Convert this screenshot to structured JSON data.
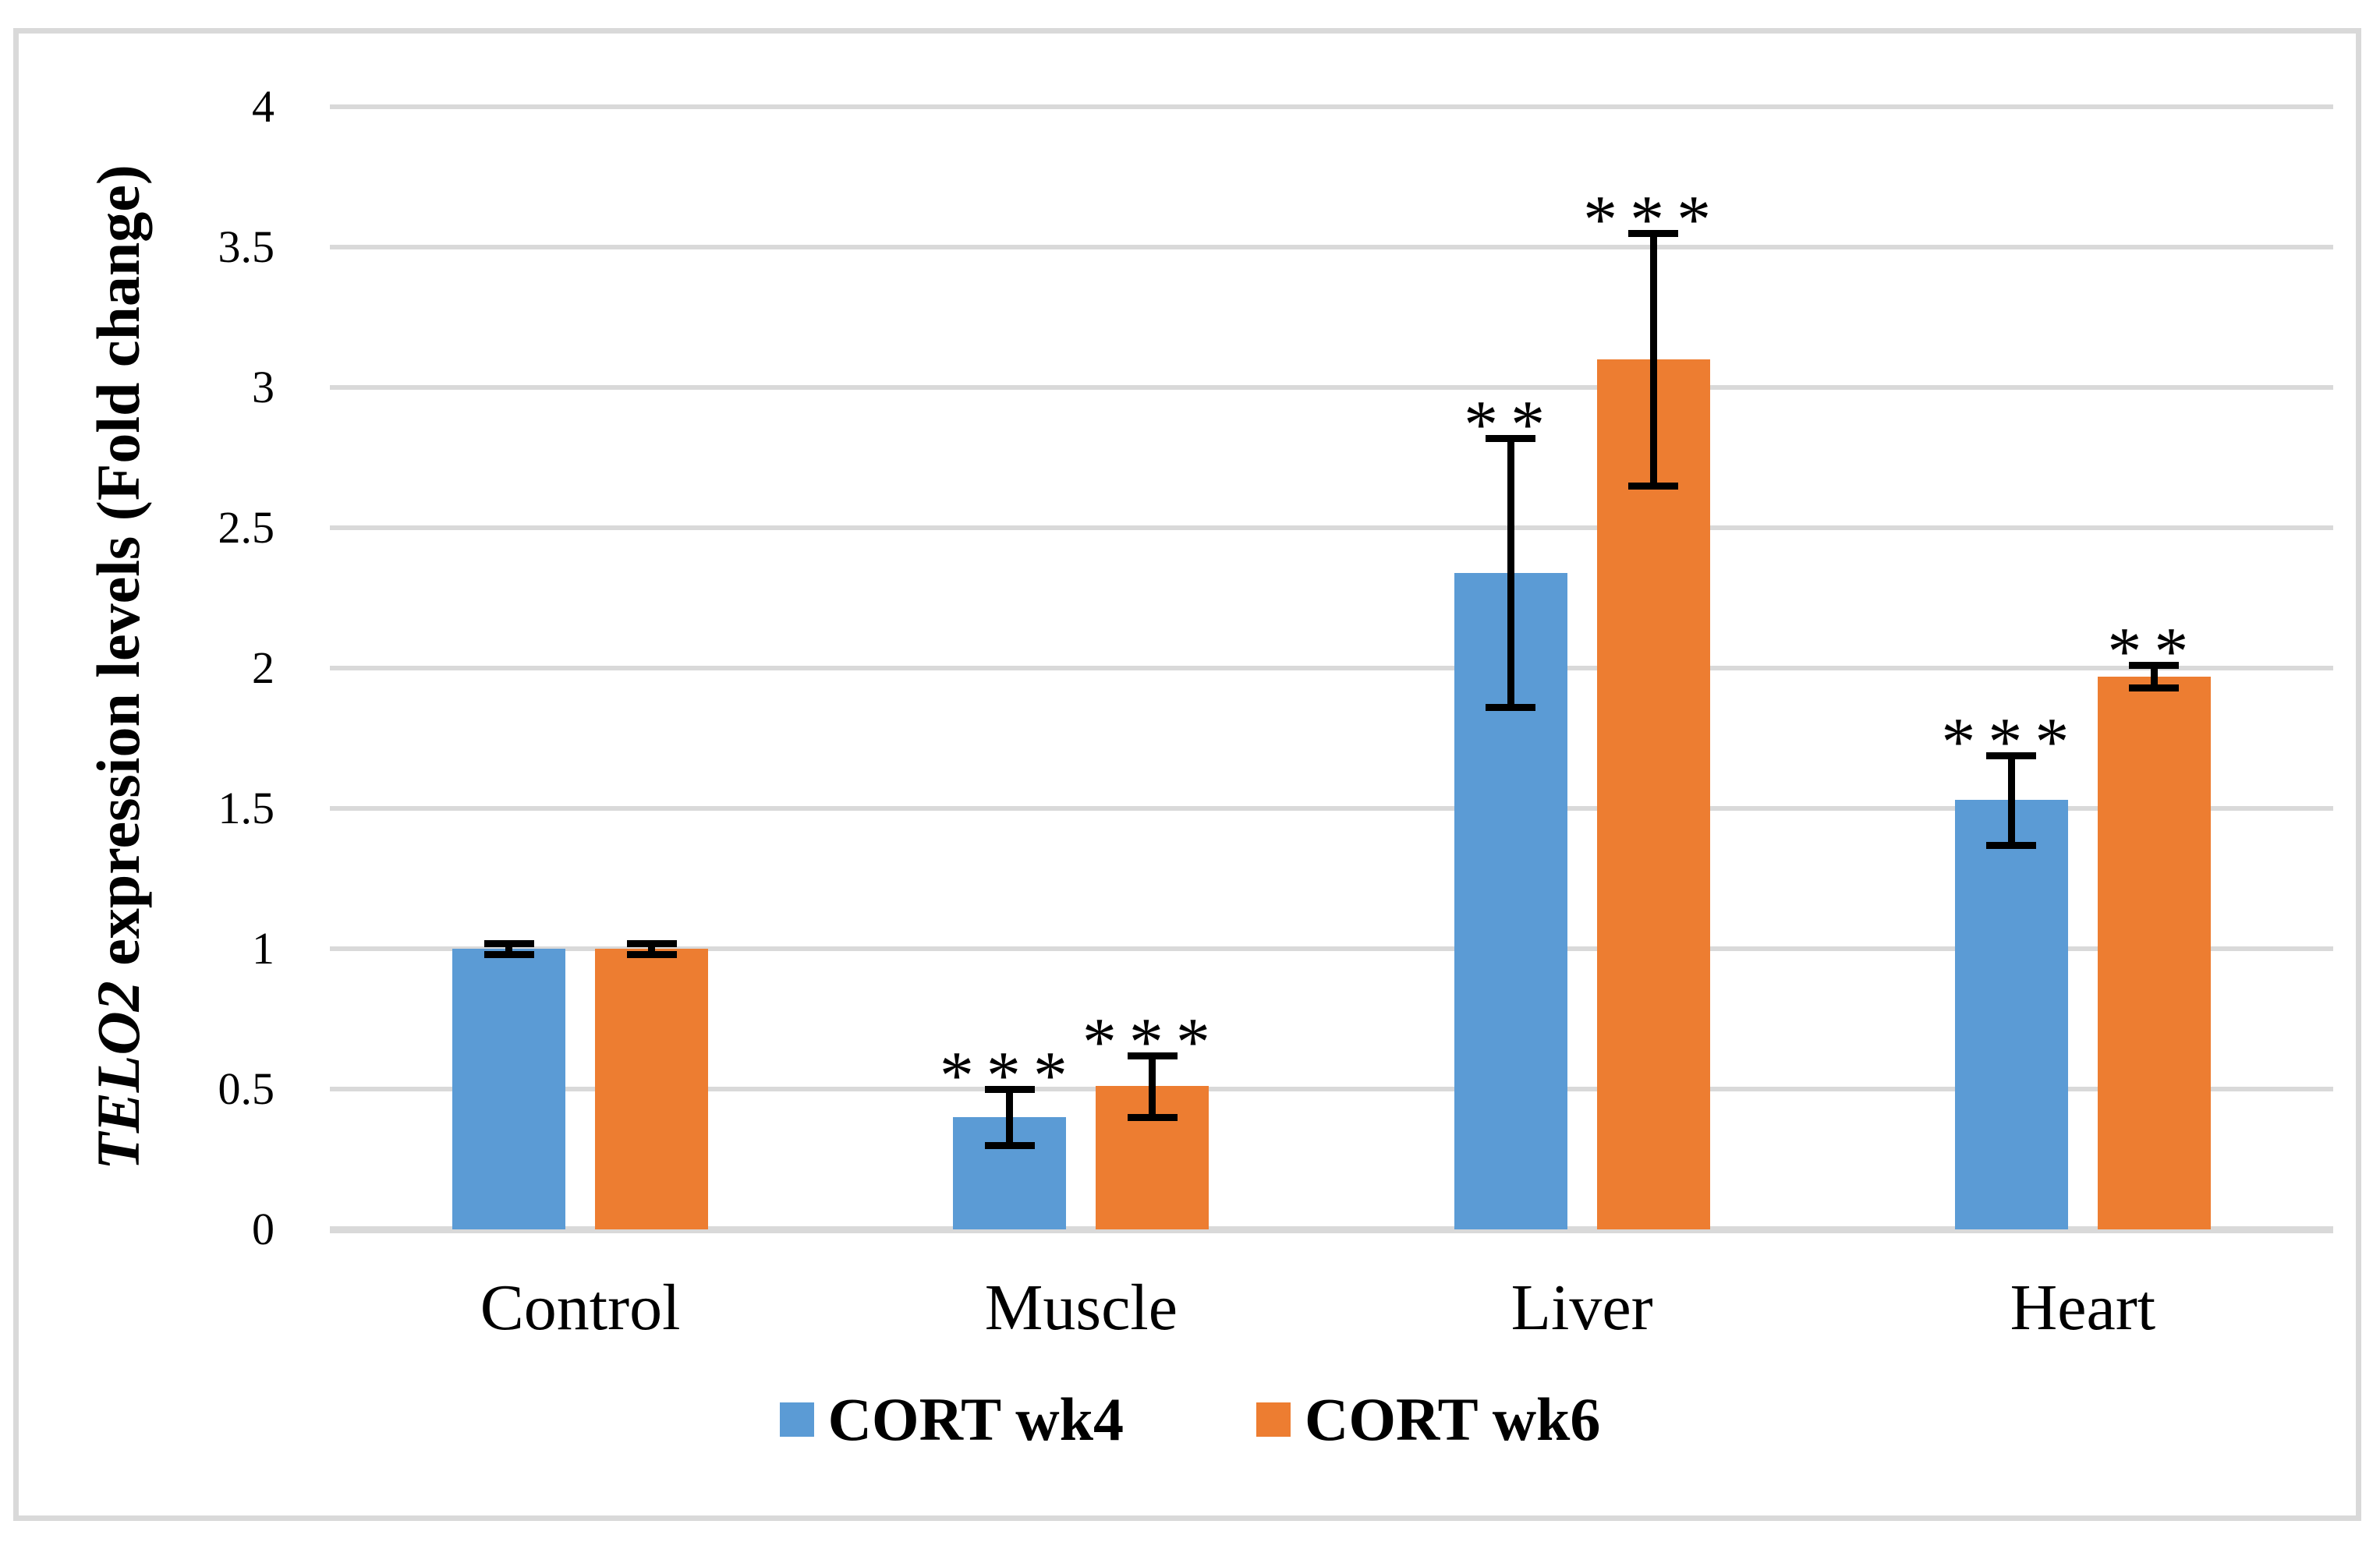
{
  "chart_data": {
    "type": "bar",
    "title": "",
    "ylabel_italic": "TELO2",
    "ylabel_rest": " expression levels (Fold change)",
    "categories": [
      "Control",
      "Muscle",
      "Liver",
      "Heart"
    ],
    "series": [
      {
        "name": "CORT wk4",
        "color": "#5b9bd5",
        "values": [
          1.0,
          0.4,
          2.34,
          1.53
        ],
        "errors": [
          0.02,
          0.1,
          0.48,
          0.16
        ],
        "significance": [
          "",
          "***",
          "**",
          "***"
        ]
      },
      {
        "name": "CORT wk6",
        "color": "#ed7d31",
        "values": [
          1.0,
          0.51,
          3.1,
          1.97
        ],
        "errors": [
          0.02,
          0.11,
          0.45,
          0.04
        ],
        "significance": [
          "",
          "***",
          "***",
          "**"
        ]
      }
    ],
    "ylim": [
      0,
      4
    ],
    "ytick_step": 0.5,
    "yticks": [
      "4",
      "3.5",
      "3",
      "2.5",
      "2",
      "1.5",
      "1",
      "0.5",
      "0"
    ],
    "grid": true,
    "gridline_color": "#d9d9d9",
    "error_bar_color": "#000000",
    "legend_position": "bottom"
  }
}
